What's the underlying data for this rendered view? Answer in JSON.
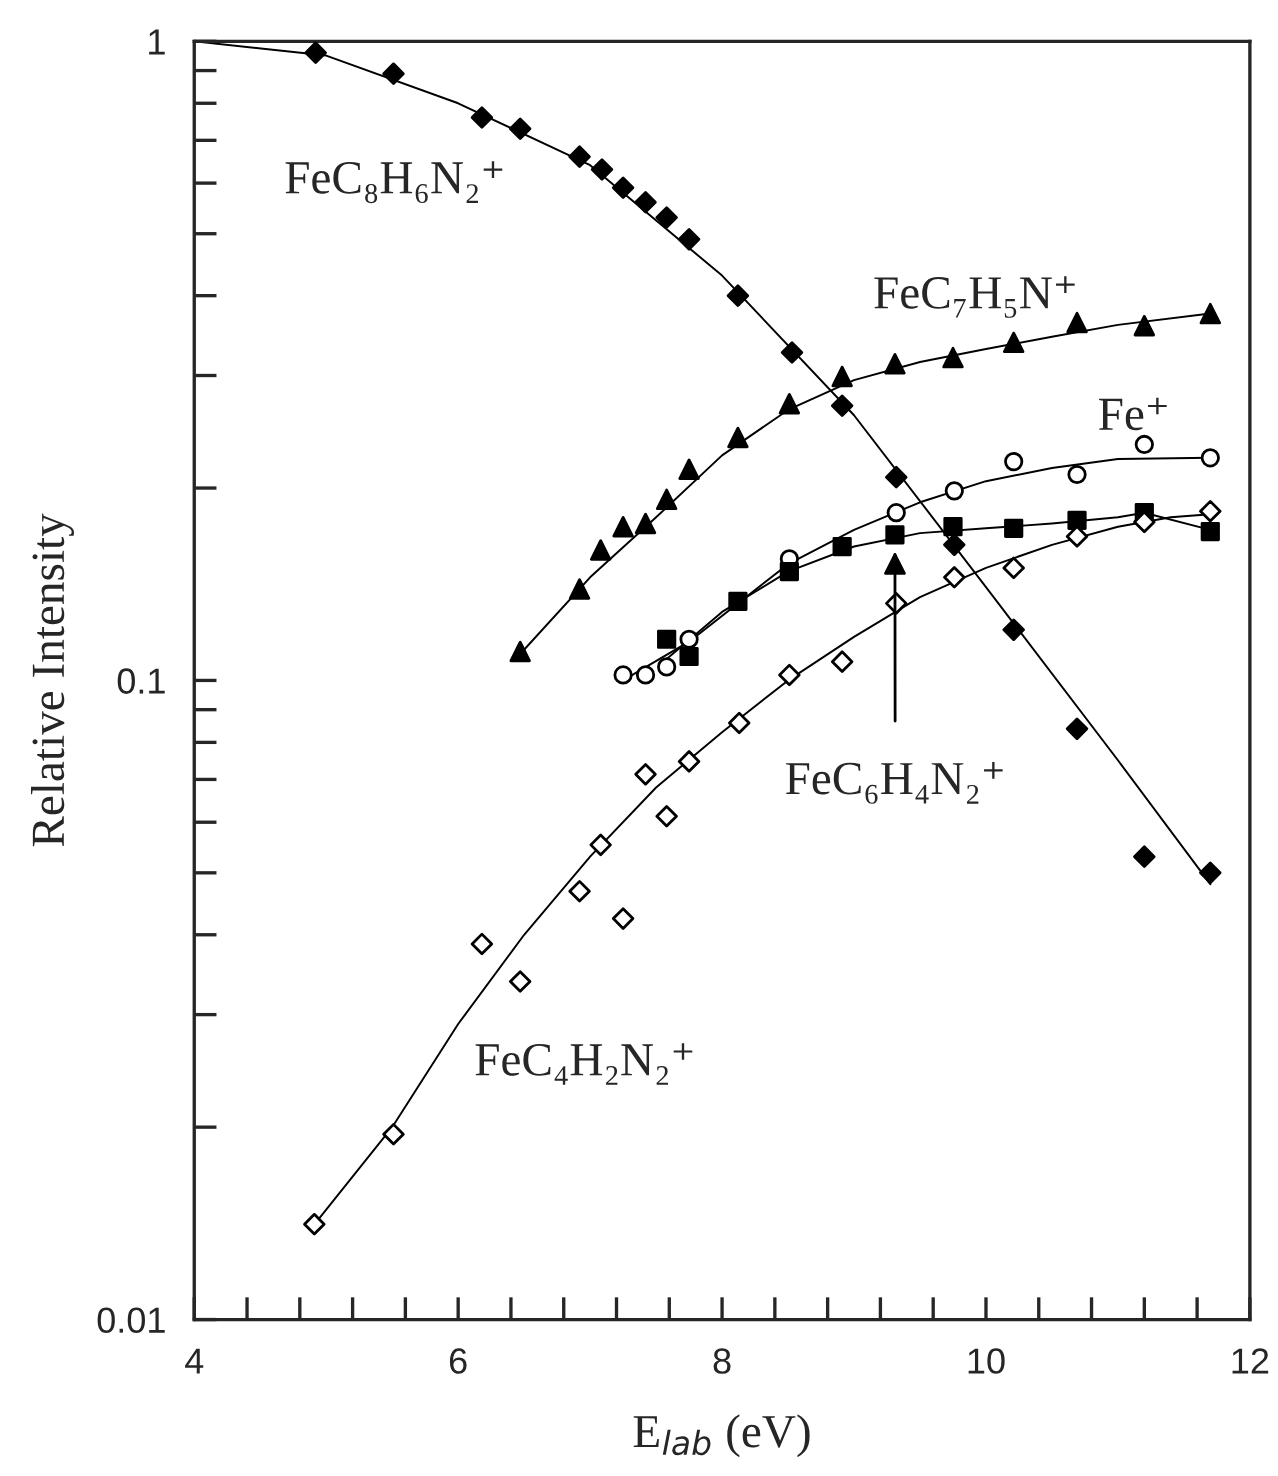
{
  "chart_data": {
    "type": "scatter",
    "xlabel": "E$_{lab}$ (eV)",
    "ylabel": "Relative Intensity",
    "log": "y",
    "xlim": [
      4,
      12
    ],
    "ylim": [
      0.01,
      1
    ],
    "xticks": [
      4,
      {
        "value": 4.4,
        "label": null
      },
      {
        "value": 4.8,
        "label": null
      },
      {
        "value": 5.2,
        "label": null
      },
      {
        "value": 5.6,
        "label": null
      },
      6,
      {
        "value": 6.4,
        "label": null
      },
      {
        "value": 6.8,
        "label": null
      },
      {
        "value": 7.2,
        "label": null
      },
      {
        "value": 7.6,
        "label": null
      },
      8,
      {
        "value": 8.4,
        "label": null
      },
      {
        "value": 8.8,
        "label": null
      },
      {
        "value": 9.2,
        "label": null
      },
      {
        "value": 9.6,
        "label": null
      },
      10,
      {
        "value": 10.4,
        "label": null
      },
      {
        "value": 10.8,
        "label": null
      },
      {
        "value": 11.2,
        "label": null
      },
      {
        "value": 11.6,
        "label": null
      },
      12
    ],
    "yticks": [
      0.01,
      {
        "value": 0.02,
        "label": null
      },
      {
        "value": 0.03,
        "label": null
      },
      {
        "value": 0.04,
        "label": null
      },
      {
        "value": 0.05,
        "label": null
      },
      {
        "value": 0.06,
        "label": null
      },
      {
        "value": 0.07,
        "label": null
      },
      {
        "value": 0.08,
        "label": null
      },
      {
        "value": 0.09,
        "label": null
      },
      0.1,
      {
        "value": 0.2,
        "label": null
      },
      {
        "value": 0.3,
        "label": null
      },
      {
        "value": 0.4,
        "label": null
      },
      {
        "value": 0.5,
        "label": null
      },
      {
        "value": 0.6,
        "label": null
      },
      {
        "value": 0.7,
        "label": null
      },
      {
        "value": 0.8,
        "label": null
      },
      {
        "value": 0.9,
        "label": null
      },
      1
    ],
    "grid": false,
    "legend": false,
    "series": [
      {
        "name": "FeC₈H₆N₂⁺",
        "marker": "diamond",
        "color": "#000000",
        "x": [
          4.92,
          5.51,
          6.18,
          6.47,
          6.92,
          7.09,
          7.25,
          7.42,
          7.58,
          7.75,
          8.12,
          8.53,
          8.91,
          9.32,
          9.76,
          10.21,
          10.69,
          11.2,
          11.7
        ],
        "values": [
          0.96,
          0.89,
          0.76,
          0.73,
          0.66,
          0.63,
          0.59,
          0.56,
          0.53,
          0.49,
          0.4,
          0.326,
          0.269,
          0.208,
          0.163,
          0.12,
          0.084,
          0.053,
          0.05
        ]
      },
      {
        "name": "FeC₇H₅N⁺",
        "marker": "triangle",
        "color": "#000000",
        "x": [
          6.47,
          6.92,
          7.08,
          7.25,
          7.42,
          7.58,
          7.75,
          8.12,
          8.51,
          8.91,
          9.31,
          9.75,
          10.21,
          10.69,
          11.2,
          11.7
        ],
        "values": [
          0.111,
          0.139,
          0.16,
          0.174,
          0.176,
          0.192,
          0.214,
          0.24,
          0.271,
          0.299,
          0.313,
          0.32,
          0.338,
          0.363,
          0.359,
          0.375
        ]
      },
      {
        "name": "Fe⁺",
        "marker": "circle",
        "color": "#ffffff",
        "x": [
          7.25,
          7.42,
          7.58,
          7.75,
          8.51,
          9.32,
          9.76,
          10.21,
          10.69,
          11.2,
          11.7
        ],
        "values": [
          0.102,
          0.102,
          0.105,
          0.116,
          0.155,
          0.183,
          0.198,
          0.22,
          0.21,
          0.234,
          0.223
        ]
      },
      {
        "name": "FeC₆H₄N₂⁺",
        "marker": "square",
        "color": "#000000",
        "x": [
          7.58,
          7.75,
          8.12,
          8.51,
          8.91,
          9.31,
          9.75,
          10.21,
          10.69,
          11.2,
          11.7
        ],
        "values": [
          0.116,
          0.109,
          0.133,
          0.148,
          0.162,
          0.169,
          0.174,
          0.173,
          0.178,
          0.183,
          0.171
        ]
      },
      {
        "name": "FeC₄H₂N₂⁺",
        "marker": "diamond",
        "color": "#ffffff",
        "x": [
          4.91,
          5.51,
          6.18,
          6.47,
          6.92,
          7.08,
          7.25,
          7.42,
          7.58,
          7.75,
          8.13,
          8.51,
          8.91,
          9.32,
          9.76,
          10.21,
          10.69,
          11.2,
          11.7
        ],
        "values": [
          0.0141,
          0.0195,
          0.0387,
          0.0338,
          0.0468,
          0.0553,
          0.0424,
          0.0713,
          0.0613,
          0.0747,
          0.0858,
          0.102,
          0.107,
          0.132,
          0.145,
          0.15,
          0.168,
          0.177,
          0.184
        ]
      },
      {
        "type": "line",
        "color": "#000000",
        "x": [
          4,
          5,
          6,
          7,
          8,
          9,
          10,
          11,
          11.7
        ],
        "values": [
          1.0,
          0.95,
          0.8,
          0.64,
          0.43,
          0.26,
          0.14,
          0.075,
          0.048
        ]
      },
      {
        "type": "line",
        "color": "#000000",
        "x": [
          6.47,
          7,
          7.5,
          8,
          8.5,
          9,
          9.5,
          10,
          10.5,
          11,
          11.7
        ],
        "values": [
          0.11,
          0.145,
          0.18,
          0.225,
          0.265,
          0.295,
          0.315,
          0.33,
          0.345,
          0.36,
          0.375
        ]
      },
      {
        "type": "line",
        "color": "#000000",
        "x": [
          7.25,
          7.75,
          8.5,
          9,
          9.5,
          10,
          10.5,
          11,
          11.7
        ],
        "values": [
          0.1,
          0.115,
          0.152,
          0.172,
          0.19,
          0.205,
          0.215,
          0.222,
          0.223
        ]
      },
      {
        "type": "line",
        "color": "#000000",
        "x": [
          7.58,
          8,
          8.5,
          9,
          9.5,
          10,
          10.5,
          11,
          11.2,
          11.7
        ],
        "values": [
          0.108,
          0.128,
          0.148,
          0.162,
          0.17,
          0.173,
          0.176,
          0.18,
          0.183,
          0.172
        ]
      },
      {
        "type": "line",
        "color": "#000000",
        "x": [
          4.9,
          5.5,
          6,
          6.5,
          7,
          7.5,
          8,
          8.5,
          9,
          9.5,
          10,
          10.5,
          11,
          11.4,
          11.7
        ],
        "values": [
          0.014,
          0.02,
          0.029,
          0.04,
          0.053,
          0.068,
          0.083,
          0.1,
          0.117,
          0.135,
          0.15,
          0.163,
          0.174,
          0.18,
          0.182
        ]
      }
    ]
  }
}
